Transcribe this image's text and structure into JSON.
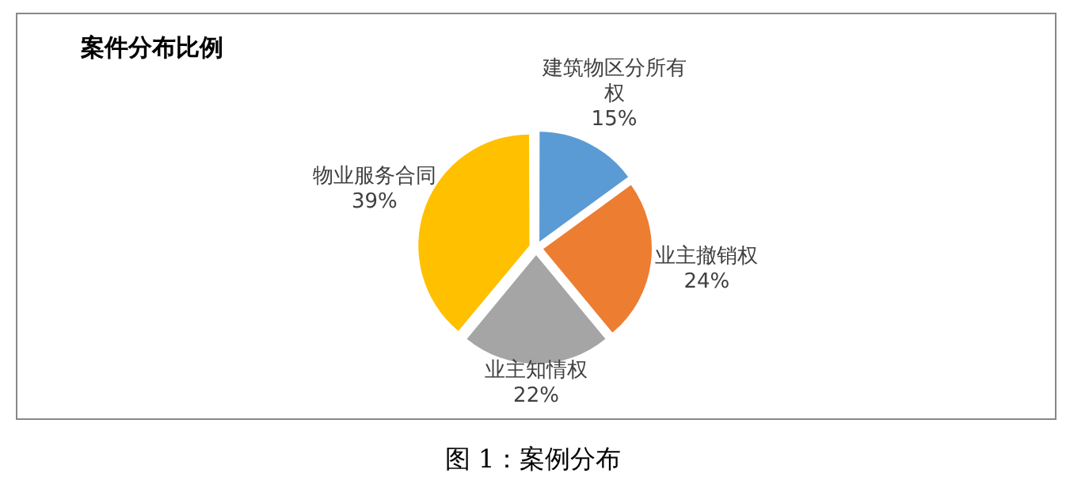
{
  "chart_data": {
    "type": "pie",
    "title": "案件分布比例",
    "categories": [
      "建筑物区分所有权",
      "业主撤销权",
      "业主知情权",
      "物业服务合同"
    ],
    "values": [
      15,
      24,
      22,
      39
    ],
    "value_labels": [
      "15%",
      "24%",
      "22%",
      "39%"
    ],
    "colors": [
      "#5b9bd5",
      "#ed7d31",
      "#a5a5a5",
      "#ffc000"
    ],
    "legend": false,
    "annotations": [
      "图 1：案例分布"
    ]
  }
}
